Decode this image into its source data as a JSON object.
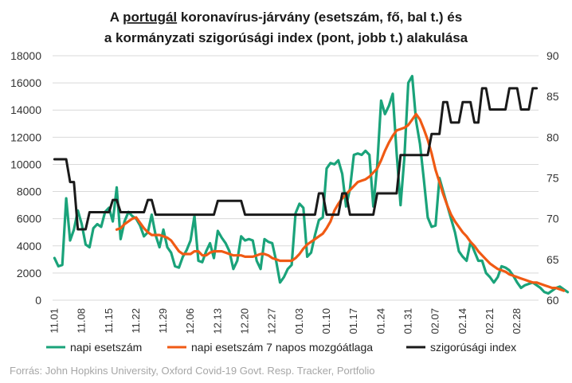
{
  "chart_data": {
    "type": "line",
    "title_parts": {
      "line1_prefix": "A ",
      "line1_underlined": "portugál",
      "line1_rest": " koronavírus-járvány (esetszám, fő, bal t.) és",
      "line2": "a kormányzati szigorúsági index (pont, jobb t.) alakulása"
    },
    "left_axis": {
      "min": 0,
      "max": 18000,
      "step": 2000,
      "ticks": [
        "0",
        "2000",
        "4000",
        "6000",
        "8000",
        "10000",
        "12000",
        "14000",
        "16000",
        "18000"
      ]
    },
    "right_axis": {
      "min": 60,
      "max": 90,
      "step": 5,
      "ticks": [
        "60",
        "65",
        "70",
        "75",
        "80",
        "85",
        "90"
      ]
    },
    "x_labels": [
      "11.01",
      "11.08",
      "11.15",
      "11.22",
      "11.29",
      "12.06",
      "12.13",
      "12.20",
      "12.27",
      "01.03",
      "01.10",
      "01.17",
      "01.24",
      "01.31",
      "02.07",
      "02.14",
      "02.21",
      "02.28"
    ],
    "x_start_date": "11.01",
    "series": [
      {
        "name": "napi esetszám",
        "color": "#1aa37a",
        "axis": "left",
        "values": [
          3100,
          2500,
          2600,
          7500,
          4400,
          5200,
          6600,
          5600,
          4100,
          3900,
          5300,
          5600,
          5400,
          6500,
          6800,
          5800,
          8300,
          4500,
          5800,
          6500,
          6200,
          6000,
          5500,
          4700,
          5000,
          6300,
          4800,
          3900,
          5200,
          3900,
          3500,
          2500,
          2400,
          3200,
          3700,
          4400,
          6200,
          2900,
          2800,
          3600,
          4200,
          3100,
          5100,
          4600,
          4200,
          3600,
          2300,
          2900,
          4700,
          4400,
          4500,
          4400,
          2900,
          2300,
          4500,
          4300,
          4200,
          2900,
          1300,
          1700,
          2300,
          2600,
          6400,
          7100,
          6800,
          3200,
          3500,
          4800,
          5900,
          6100,
          9700,
          10100,
          10000,
          10300,
          9300,
          6900,
          8200,
          10700,
          10800,
          10700,
          11000,
          10700,
          6900,
          9900,
          14700,
          13700,
          14300,
          15200,
          10800,
          7000,
          10500,
          16000,
          16500,
          13200,
          11500,
          8900,
          6100,
          5400,
          5500,
          9000,
          8000,
          7000,
          6000,
          5000,
          3600,
          3200,
          2900,
          4300,
          3600,
          2900,
          2900,
          2000,
          1700,
          1300,
          1700,
          2500,
          2400,
          2200,
          1800,
          1300,
          900,
          1100,
          1200,
          1300,
          1100,
          900,
          600,
          500,
          700,
          900,
          1000,
          800,
          600
        ]
      },
      {
        "name": "napi esetszám 7 napos mozgóátlaga",
        "color": "#f05a14",
        "axis": "left",
        "values": [
          null,
          null,
          null,
          null,
          null,
          null,
          null,
          null,
          null,
          null,
          null,
          null,
          null,
          null,
          null,
          null,
          5200,
          5300,
          5600,
          5800,
          6000,
          6100,
          5700,
          5300,
          5000,
          4800,
          4800,
          4800,
          4700,
          4600,
          4400,
          4000,
          3600,
          3400,
          3400,
          3400,
          3600,
          3600,
          3300,
          3300,
          3500,
          3600,
          3600,
          3600,
          3500,
          3400,
          3300,
          3300,
          3300,
          3200,
          3200,
          3200,
          3300,
          3400,
          3400,
          3300,
          3100,
          3000,
          2900,
          2900,
          2900,
          2900,
          3100,
          3400,
          3800,
          4100,
          4300,
          4500,
          4700,
          4900,
          5300,
          5800,
          6600,
          7100,
          7500,
          7800,
          8100,
          8400,
          8700,
          8800,
          8900,
          9100,
          9400,
          9700,
          10300,
          11000,
          11600,
          12100,
          12500,
          12600,
          12700,
          12900,
          13300,
          13700,
          13300,
          12600,
          11800,
          10800,
          9600,
          8700,
          7800,
          7000,
          6300,
          5800,
          5400,
          5000,
          4700,
          4300,
          4000,
          3600,
          3300,
          3000,
          2700,
          2500,
          2300,
          2200,
          2100,
          1900,
          1800,
          1700,
          1600,
          1500,
          1400,
          1300,
          1300,
          1200,
          1100,
          1000,
          900,
          900,
          800,
          700
        ]
      },
      {
        "name": "szigorúsági index",
        "color": "#1a1a1a",
        "axis": "right",
        "segments": [
          {
            "from": 0,
            "to": 3,
            "value": 77.3
          },
          {
            "from": 4,
            "to": 5,
            "value": 74.5
          },
          {
            "from": 6,
            "to": 8,
            "value": 68.7
          },
          {
            "from": 9,
            "to": 14,
            "value": 70.8
          },
          {
            "from": 15,
            "to": 16,
            "value": 72.3
          },
          {
            "from": 17,
            "to": 23,
            "value": 70.8
          },
          {
            "from": 24,
            "to": 25,
            "value": 72.3
          },
          {
            "from": 26,
            "to": 41,
            "value": 70.5
          },
          {
            "from": 42,
            "to": 48,
            "value": 72.2
          },
          {
            "from": 49,
            "to": 67,
            "value": 70.5
          },
          {
            "from": 68,
            "to": 69,
            "value": 73.1
          },
          {
            "from": 70,
            "to": 73,
            "value": 70.5
          },
          {
            "from": 74,
            "to": 75,
            "value": 73.1
          },
          {
            "from": 76,
            "to": 82,
            "value": 70.5
          },
          {
            "from": 83,
            "to": 88,
            "value": 73.1
          },
          {
            "from": 89,
            "to": 96,
            "value": 77.8
          },
          {
            "from": 97,
            "to": 99,
            "value": 80.4
          },
          {
            "from": 100,
            "to": 101,
            "value": 84.3
          },
          {
            "from": 102,
            "to": 104,
            "value": 81.8
          },
          {
            "from": 105,
            "to": 107,
            "value": 84.3
          },
          {
            "from": 108,
            "to": 109,
            "value": 81.8
          },
          {
            "from": 110,
            "to": 111,
            "value": 86.0
          },
          {
            "from": 112,
            "to": 116,
            "value": 83.4
          },
          {
            "from": 117,
            "to": 119,
            "value": 86.0
          },
          {
            "from": 120,
            "to": 122,
            "value": 83.4
          },
          {
            "from": 123,
            "to": 124,
            "value": 86.0
          }
        ]
      }
    ],
    "legend": [
      {
        "label": "napi esetszám",
        "color": "#1aa37a"
      },
      {
        "label": "napi esetszám 7 napos mozgóátlaga",
        "color": "#f05a14"
      },
      {
        "label": "szigorúsági index",
        "color": "#1a1a1a"
      }
    ],
    "legend_position": "bottom",
    "grid": true,
    "source": "Forrás: John Hopkins University, Oxford Covid-19 Govt. Resp. Tracker, Portfolio"
  }
}
